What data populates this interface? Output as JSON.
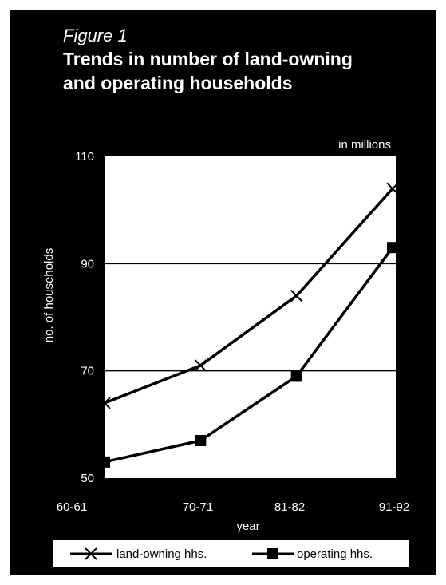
{
  "figure_label": "Figure 1",
  "title": "Trends in number of land-owning\nand operating households",
  "unit_note": "in millions",
  "chart_data": {
    "type": "line",
    "categories": [
      "60-61",
      "70-71",
      "81-82",
      "91-92"
    ],
    "xlabel": "year",
    "ylabel": "no.  of  households",
    "ylim": [
      50,
      110
    ],
    "yticks": [
      50,
      70,
      90,
      110
    ],
    "gridlines": [
      70,
      90
    ],
    "legend_position": "bottom",
    "series": [
      {
        "name": "land-owning hhs.",
        "marker": "x",
        "values": [
          64,
          71,
          84,
          104
        ]
      },
      {
        "name": "operating hhs.",
        "marker": "square",
        "values": [
          53,
          57,
          69,
          93
        ]
      }
    ]
  }
}
